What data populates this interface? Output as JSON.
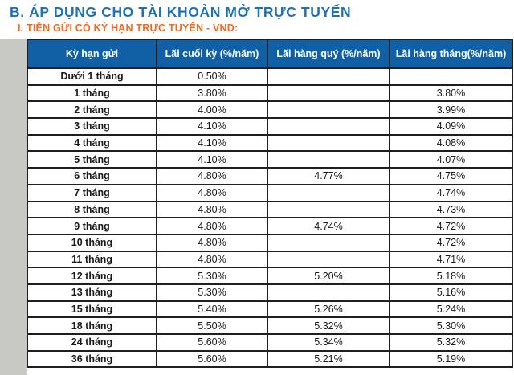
{
  "page": {
    "title": "B. ÁP DỤNG CHO TÀI KHOẢN MỞ TRỰC TUYẾN",
    "subtitle": "I. TIỀN GỬI CÓ KỲ HẠN TRỰC TUYẾN - VND:"
  },
  "colors": {
    "title_blue": "#1c72b8",
    "subtitle_orange": "#f26a21",
    "header_bg": "#1160a5",
    "header_text": "#ffffff",
    "border_color": "#1f1f1f",
    "left_margin_grey": "#c8c8c4"
  },
  "table": {
    "headers": [
      "Kỳ hạn gửi",
      "Lãi cuối kỳ (%/năm)",
      "Lãi hàng quý (%/năm)",
      "Lãi hàng tháng(%/năm)"
    ],
    "rows": [
      [
        "Dưới 1 tháng",
        "0.50%",
        "",
        ""
      ],
      [
        "1 tháng",
        "3.80%",
        "",
        "3.80%"
      ],
      [
        "2 tháng",
        "4.00%",
        "",
        "3.99%"
      ],
      [
        "3 tháng",
        "4.10%",
        "",
        "4.09%"
      ],
      [
        "4 tháng",
        "4.10%",
        "",
        "4.08%"
      ],
      [
        "5 tháng",
        "4.10%",
        "",
        "4.07%"
      ],
      [
        "6 tháng",
        "4.80%",
        "4.77%",
        "4.75%"
      ],
      [
        "7 tháng",
        "4.80%",
        "",
        "4.74%"
      ],
      [
        "8 tháng",
        "4.80%",
        "",
        "4.73%"
      ],
      [
        "9 tháng",
        "4.80%",
        "4.74%",
        "4.72%"
      ],
      [
        "10 tháng",
        "4.80%",
        "",
        "4.72%"
      ],
      [
        "11 tháng",
        "4.80%",
        "",
        "4.71%"
      ],
      [
        "12 tháng",
        "5.30%",
        "5.20%",
        "5.18%"
      ],
      [
        "13 tháng",
        "5.30%",
        "",
        "5.16%"
      ],
      [
        "15 tháng",
        "5.40%",
        "5.26%",
        "5.24%"
      ],
      [
        "18 tháng",
        "5.50%",
        "5.32%",
        "5.30%"
      ],
      [
        "24 tháng",
        "5.60%",
        "5.34%",
        "5.32%"
      ],
      [
        "36 tháng",
        "5.60%",
        "5.21%",
        "5.19%"
      ]
    ]
  }
}
